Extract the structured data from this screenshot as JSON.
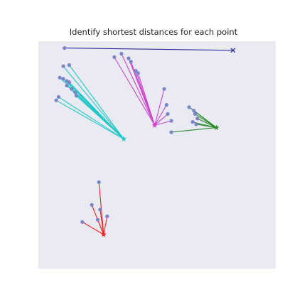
{
  "chart_data": {
    "type": "scatter",
    "title": "Identify shortest distances for each point",
    "xlabel": "",
    "ylabel": "",
    "xlim": [
      0,
      10
    ],
    "ylim": [
      0,
      10
    ],
    "grid": false,
    "axes_visible": false,
    "background": "#eaeaf2",
    "point_color": "#7b84c7",
    "groups": [
      {
        "color": "#2b2b9c",
        "marker": "x",
        "target": [
          8.2,
          9.6
        ],
        "sources": [
          [
            1.1,
            9.7
          ]
        ]
      },
      {
        "color": "#20c8c8",
        "marker": "*",
        "target": [
          3.6,
          5.7
        ],
        "sources": [
          [
            1.05,
            8.9
          ],
          [
            1.3,
            8.95
          ],
          [
            0.9,
            8.4
          ],
          [
            1.05,
            8.35
          ],
          [
            1.2,
            8.25
          ],
          [
            1.3,
            8.2
          ],
          [
            1.2,
            8.05
          ],
          [
            1.4,
            7.9
          ],
          [
            1.55,
            7.75
          ],
          [
            1.6,
            7.6
          ],
          [
            0.85,
            7.55
          ],
          [
            0.75,
            7.4
          ]
        ]
      },
      {
        "color": "#cc44cc",
        "marker": "*",
        "target": [
          4.9,
          6.3
        ],
        "sources": [
          [
            3.2,
            9.3
          ],
          [
            3.5,
            9.45
          ],
          [
            3.8,
            9.25
          ],
          [
            3.9,
            9.1
          ],
          [
            4.1,
            8.7
          ],
          [
            4.2,
            8.6
          ],
          [
            5.3,
            7.9
          ],
          [
            5.4,
            7.2
          ],
          [
            5.45,
            6.8
          ],
          [
            5.6,
            6.5
          ]
        ]
      },
      {
        "color": "#2a8a2a",
        "marker": "*",
        "target": [
          7.5,
          6.2
        ],
        "sources": [
          [
            6.35,
            7.1
          ],
          [
            6.55,
            6.95
          ],
          [
            6.6,
            6.8
          ],
          [
            6.7,
            6.6
          ],
          [
            6.5,
            6.45
          ],
          [
            6.65,
            6.35
          ],
          [
            5.6,
            6.0
          ]
        ]
      },
      {
        "color": "#ee2222",
        "marker": "*",
        "target": [
          2.75,
          1.5
        ],
        "sources": [
          [
            2.55,
            3.8
          ],
          [
            2.25,
            2.8
          ],
          [
            2.6,
            2.6
          ],
          [
            2.5,
            2.15
          ],
          [
            1.85,
            2.05
          ],
          [
            2.9,
            2.3
          ]
        ]
      }
    ]
  }
}
